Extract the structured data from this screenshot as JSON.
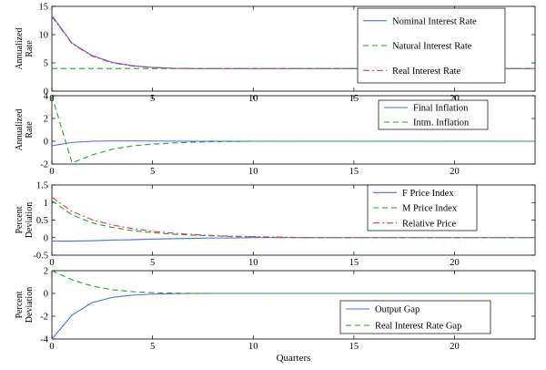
{
  "chart_data": [
    {
      "type": "line",
      "ylabel": [
        "Annualized",
        "Rate"
      ],
      "xlim": [
        0,
        24
      ],
      "ylim": [
        0,
        15
      ],
      "xticks": [
        0,
        5,
        10,
        15,
        20
      ],
      "yticks": [
        0,
        5,
        10,
        15
      ],
      "legend": "top-right",
      "series": [
        {
          "name": "Nominal Interest Rate",
          "color": "#4a6ee0",
          "dash": "solid",
          "x": [
            0,
            1,
            2,
            3,
            4,
            5,
            6,
            7,
            8,
            9,
            10,
            11,
            12,
            13,
            14,
            15,
            16,
            17,
            18,
            19,
            20,
            21,
            22,
            23,
            24
          ],
          "y": [
            13.4,
            8.5,
            6.3,
            5.1,
            4.5,
            4.2,
            4.05,
            4.0,
            4.0,
            4.0,
            4.0,
            4.0,
            4.0,
            4.0,
            4.0,
            4.0,
            4.0,
            4.0,
            4.0,
            4.0,
            4.0,
            4.0,
            4.0,
            4.0,
            4.0
          ]
        },
        {
          "name": "Natural Interest Rate",
          "color": "#2a9a2a",
          "dash": "dashed",
          "x": [
            0,
            24
          ],
          "y": [
            4.0,
            4.0
          ]
        },
        {
          "name": "Real Interest Rate",
          "color": "#d2405a",
          "dash": "dashdot",
          "x": [
            0,
            1,
            2,
            3,
            4,
            5,
            6,
            7,
            8,
            9,
            10,
            11,
            12,
            13,
            14,
            15,
            16,
            17,
            18,
            19,
            20,
            21,
            22,
            23,
            24
          ],
          "y": [
            13.2,
            8.4,
            6.2,
            5.0,
            4.45,
            4.18,
            4.05,
            4.0,
            4.0,
            4.0,
            4.0,
            4.0,
            4.0,
            4.0,
            4.0,
            4.0,
            4.0,
            4.0,
            4.0,
            4.0,
            4.0,
            4.0,
            4.0,
            4.0,
            4.0
          ]
        }
      ]
    },
    {
      "type": "line",
      "ylabel": [
        "Annualized",
        "Rate"
      ],
      "xlim": [
        0,
        24
      ],
      "ylim": [
        -2,
        4
      ],
      "xticks": [
        0,
        5,
        10,
        15,
        20
      ],
      "yticks": [
        -2,
        0,
        2,
        4
      ],
      "legend": "top-right",
      "series": [
        {
          "name": "Final Inflation",
          "color": "#4a6ee0",
          "dash": "solid",
          "x": [
            0,
            1,
            2,
            3,
            4,
            5,
            6,
            7,
            8,
            9,
            10,
            11,
            12,
            13,
            14,
            15,
            16,
            17,
            18,
            19,
            20,
            21,
            22,
            23,
            24
          ],
          "y": [
            -0.4,
            -0.1,
            0.0,
            0.03,
            0.03,
            0.02,
            0.01,
            0,
            0,
            0,
            0,
            0,
            0,
            0,
            0,
            0,
            0,
            0,
            0,
            0,
            0,
            0,
            0,
            0,
            0
          ]
        },
        {
          "name": "Intm. Inflation",
          "color": "#2a9a2a",
          "dash": "dashed",
          "x": [
            0,
            1,
            2,
            3,
            4,
            5,
            6,
            7,
            8,
            9,
            10,
            11,
            12,
            13,
            14,
            15,
            16,
            17,
            18,
            19,
            20,
            21,
            22,
            23,
            24
          ],
          "y": [
            4.0,
            -1.9,
            -1.2,
            -0.7,
            -0.4,
            -0.25,
            -0.15,
            -0.08,
            -0.04,
            -0.02,
            0,
            0,
            0,
            0,
            0,
            0,
            0,
            0,
            0,
            0,
            0,
            0,
            0,
            0,
            0
          ]
        }
      ]
    },
    {
      "type": "line",
      "ylabel": [
        "Percent",
        "Deviation"
      ],
      "xlim": [
        0,
        24
      ],
      "ylim": [
        -0.5,
        1.5
      ],
      "xticks": [
        0,
        5,
        10,
        15,
        20
      ],
      "yticks": [
        -0.5,
        0,
        0.5,
        1,
        1.5
      ],
      "legend": "top-right",
      "series": [
        {
          "name": "F Price Index",
          "color": "#4a6ee0",
          "dash": "solid",
          "x": [
            0,
            1,
            2,
            3,
            4,
            5,
            6,
            7,
            8,
            9,
            10,
            11,
            12,
            13,
            14,
            15,
            16,
            17,
            18,
            19,
            20,
            21,
            22,
            23,
            24
          ],
          "y": [
            -0.1,
            -0.1,
            -0.09,
            -0.07,
            -0.06,
            -0.04,
            -0.03,
            -0.02,
            -0.01,
            -0.01,
            0,
            0,
            0,
            0,
            0,
            0,
            0,
            0,
            0,
            0,
            0,
            0,
            0,
            0,
            0
          ]
        },
        {
          "name": "M Price Index",
          "color": "#2a9a2a",
          "dash": "dashed",
          "x": [
            0,
            1,
            2,
            3,
            4,
            5,
            6,
            7,
            8,
            9,
            10,
            11,
            12,
            13,
            14,
            15,
            16,
            17,
            18,
            19,
            20,
            21,
            22,
            23,
            24
          ],
          "y": [
            1.05,
            0.65,
            0.42,
            0.29,
            0.2,
            0.14,
            0.1,
            0.07,
            0.05,
            0.03,
            0.02,
            0.01,
            0,
            0,
            0,
            0,
            0,
            0,
            0,
            0,
            0,
            0,
            0,
            0,
            0
          ]
        },
        {
          "name": "Relative Price",
          "color": "#d2405a",
          "dash": "dashdot",
          "x": [
            0,
            1,
            2,
            3,
            4,
            5,
            6,
            7,
            8,
            9,
            10,
            11,
            12,
            13,
            14,
            15,
            16,
            17,
            18,
            19,
            20,
            21,
            22,
            23,
            24
          ],
          "y": [
            1.15,
            0.75,
            0.51,
            0.36,
            0.26,
            0.18,
            0.13,
            0.09,
            0.06,
            0.04,
            0.03,
            0.02,
            0.01,
            0,
            0,
            0,
            0,
            0,
            0,
            0,
            0,
            0,
            0,
            0,
            0
          ]
        }
      ]
    },
    {
      "type": "line",
      "ylabel": [
        "Percent",
        "Deviation"
      ],
      "xlabel": "Quarters",
      "xlim": [
        0,
        24
      ],
      "ylim": [
        -4,
        2
      ],
      "xticks": [
        0,
        5,
        10,
        15,
        20
      ],
      "yticks": [
        -4,
        -2,
        0,
        2
      ],
      "legend": "bottom-right",
      "series": [
        {
          "name": "Output Gap",
          "color": "#4a6ee0",
          "dash": "solid",
          "x": [
            0,
            1,
            2,
            3,
            4,
            5,
            6,
            7,
            8,
            9,
            10,
            11,
            12,
            13,
            14,
            15,
            16,
            17,
            18,
            19,
            20,
            21,
            22,
            23,
            24
          ],
          "y": [
            -4.0,
            -1.9,
            -0.8,
            -0.35,
            -0.15,
            -0.06,
            -0.02,
            0,
            0,
            0,
            0,
            0,
            0,
            0,
            0,
            0,
            0,
            0,
            0,
            0,
            0,
            0,
            0,
            0,
            0
          ]
        },
        {
          "name": "Real Interest Rate Gap",
          "color": "#2a9a2a",
          "dash": "dashed",
          "x": [
            0,
            1,
            2,
            3,
            4,
            5,
            6,
            7,
            8,
            9,
            10,
            11,
            12,
            13,
            14,
            15,
            16,
            17,
            18,
            19,
            20,
            21,
            22,
            23,
            24
          ],
          "y": [
            2.0,
            1.2,
            0.65,
            0.33,
            0.16,
            0.07,
            0.03,
            0.01,
            0,
            0,
            0,
            0,
            0,
            0,
            0,
            0,
            0,
            0,
            0,
            0,
            0,
            0,
            0,
            0,
            0
          ]
        }
      ]
    }
  ]
}
